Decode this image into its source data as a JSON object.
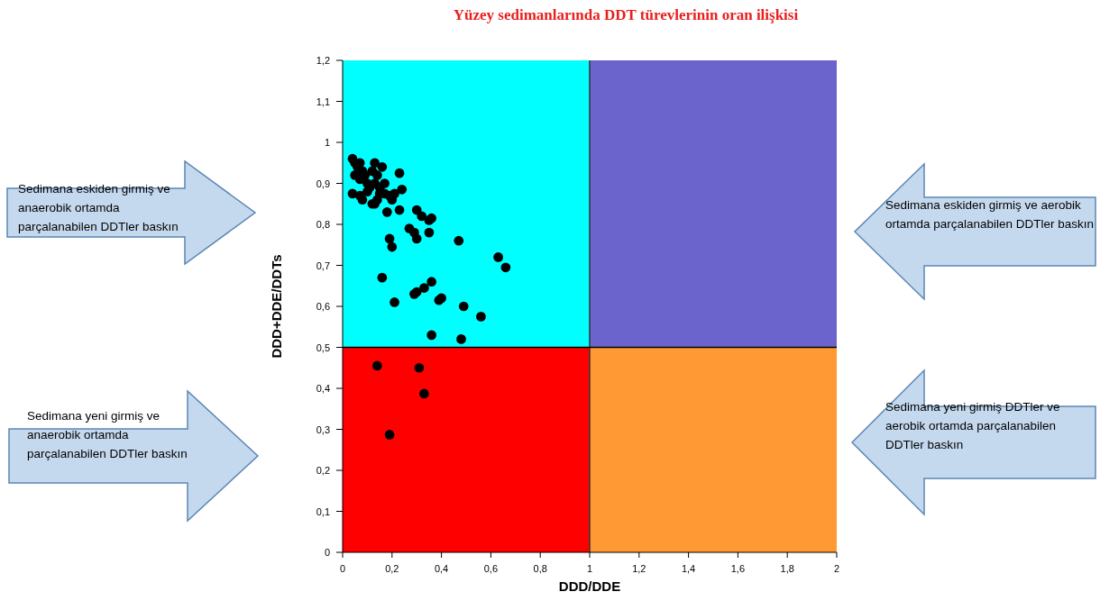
{
  "chart_data": {
    "type": "scatter",
    "title": "Yüzey sedimanlarında DDT türevlerinin oran ilişkisi",
    "xlabel": "DDD/DDE",
    "ylabel": "DDD+DDE/DDTs",
    "x": [
      0.04,
      0.05,
      0.06,
      0.07,
      0.08,
      0.05,
      0.07,
      0.09,
      0.1,
      0.12,
      0.13,
      0.14,
      0.16,
      0.11,
      0.13,
      0.15,
      0.17,
      0.23,
      0.24,
      0.04,
      0.07,
      0.08,
      0.1,
      0.12,
      0.14,
      0.15,
      0.17,
      0.19,
      0.2,
      0.21,
      0.18,
      0.23,
      0.13,
      0.27,
      0.29,
      0.3,
      0.32,
      0.35,
      0.36,
      0.3,
      0.19,
      0.2,
      0.35,
      0.47,
      0.63,
      0.66,
      0.16,
      0.36,
      0.33,
      0.29,
      0.3,
      0.39,
      0.4,
      0.21,
      0.49,
      0.56,
      0.36,
      0.48,
      0.14,
      0.31,
      0.33,
      0.19
    ],
    "values": [
      0.96,
      0.95,
      0.94,
      0.95,
      0.93,
      0.92,
      0.91,
      0.92,
      0.9,
      0.93,
      0.95,
      0.92,
      0.94,
      0.89,
      0.9,
      0.89,
      0.9,
      0.925,
      0.885,
      0.875,
      0.87,
      0.86,
      0.88,
      0.85,
      0.86,
      0.875,
      0.875,
      0.87,
      0.86,
      0.875,
      0.83,
      0.835,
      0.85,
      0.79,
      0.78,
      0.835,
      0.82,
      0.81,
      0.815,
      0.765,
      0.765,
      0.745,
      0.78,
      0.76,
      0.72,
      0.695,
      0.67,
      0.66,
      0.645,
      0.63,
      0.635,
      0.615,
      0.62,
      0.61,
      0.6,
      0.575,
      0.53,
      0.52,
      0.455,
      0.45,
      0.387,
      0.287
    ],
    "color": "#000000",
    "marker": "circle",
    "xlim": [
      0,
      2
    ],
    "ylim": [
      0,
      1.2
    ],
    "xticks": [
      0,
      {
        "value": 0.2,
        "label": "0,2"
      },
      {
        "value": 0.4,
        "label": "0,4"
      },
      {
        "value": 0.6,
        "label": "0,6"
      },
      {
        "value": 0.8,
        "label": "0,8"
      },
      1,
      {
        "value": 1.2,
        "label": "1,2"
      },
      {
        "value": 1.4,
        "label": "1,4"
      },
      {
        "value": 1.6,
        "label": "1,6"
      },
      {
        "value": 1.8,
        "label": "1,8"
      },
      2
    ],
    "yticks": [
      0,
      {
        "value": 0.1,
        "label": "0,1"
      },
      {
        "value": 0.2,
        "label": "0,2"
      },
      {
        "value": 0.3,
        "label": "0,3"
      },
      {
        "value": 0.4,
        "label": "0,4"
      },
      {
        "value": 0.5,
        "label": "0,5"
      },
      {
        "value": 0.6,
        "label": "0,6"
      },
      {
        "value": 0.7,
        "label": "0,7"
      },
      {
        "value": 0.8,
        "label": "0,8"
      },
      {
        "value": 0.9,
        "label": "0,9"
      },
      1,
      {
        "value": 1.1,
        "label": "1,1"
      },
      {
        "value": 1.2,
        "label": "1,2"
      }
    ],
    "ref_lines": [
      {
        "axis": "x",
        "value": 1,
        "color": "#333333"
      },
      {
        "axis": "y",
        "value": 0.5,
        "color": "#000000"
      }
    ],
    "annotations": [
      "Sedimana eskiden girmiş ve anaerobik ortamda parçalanabilen DDTler baskın",
      "Sedimana eskiden girmiş ve aerobik ortamda parçalanabilen DDTler baskın",
      "Sedimana yeni girmiş ve anaerobik ortamda parçalanabilen DDTler baskın",
      "Sedimana yeni girmiş DDTler ve aerobik ortamda parçalanabilen DDTler baskın"
    ],
    "bands": [
      {
        "axis": "y",
        "from": 0.5,
        "to": 1.2,
        "color": "#00ffff"
      },
      {
        "axis": "y",
        "from": 0.5,
        "to": 1.2,
        "color": "#6a64cc"
      },
      {
        "axis": "y",
        "from": 0,
        "to": 0.5,
        "color": "#ff0000"
      },
      {
        "axis": "y",
        "from": 0,
        "to": 0.5,
        "color": "#ff9933"
      }
    ],
    "grid": false
  }
}
